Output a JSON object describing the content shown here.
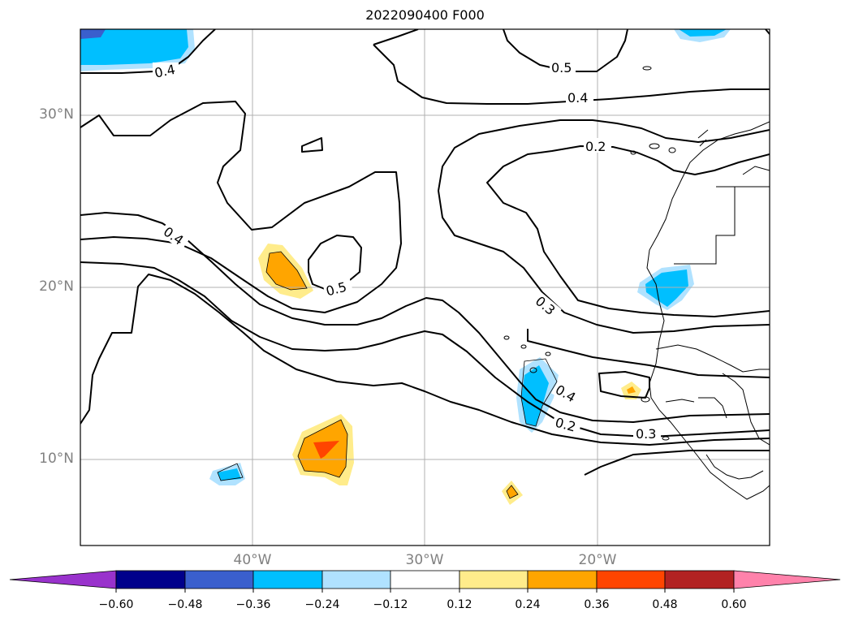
{
  "title": "2022090400 F000",
  "map": {
    "lon_range": [
      -50,
      -10
    ],
    "lat_range": [
      5,
      35
    ],
    "lat_labels": [
      "30°N",
      "20°N",
      "10°N"
    ],
    "lon_labels": [
      "40°W",
      "30°W",
      "20°W"
    ],
    "grid": true,
    "contour_labels": [
      "0.4",
      "0.5",
      "0.4",
      "0.2",
      "0.4",
      "0.5",
      "0.3",
      "0.4",
      "0.2",
      "0.3"
    ]
  },
  "colorbar": {
    "orientation": "horizontal",
    "extend": "both",
    "colors": [
      "#9932cc",
      "#00008b",
      "#3a5fcd",
      "#00bfff",
      "#b0e2ff",
      "#ffffff",
      "#ffec8b",
      "#ffa500",
      "#ff4500",
      "#b22222",
      "#ff82ab"
    ],
    "tick_labels": [
      "−0.60",
      "−0.48",
      "−0.36",
      "−0.24",
      "−0.12",
      "0.12",
      "0.24",
      "0.36",
      "0.48",
      "0.60"
    ]
  }
}
